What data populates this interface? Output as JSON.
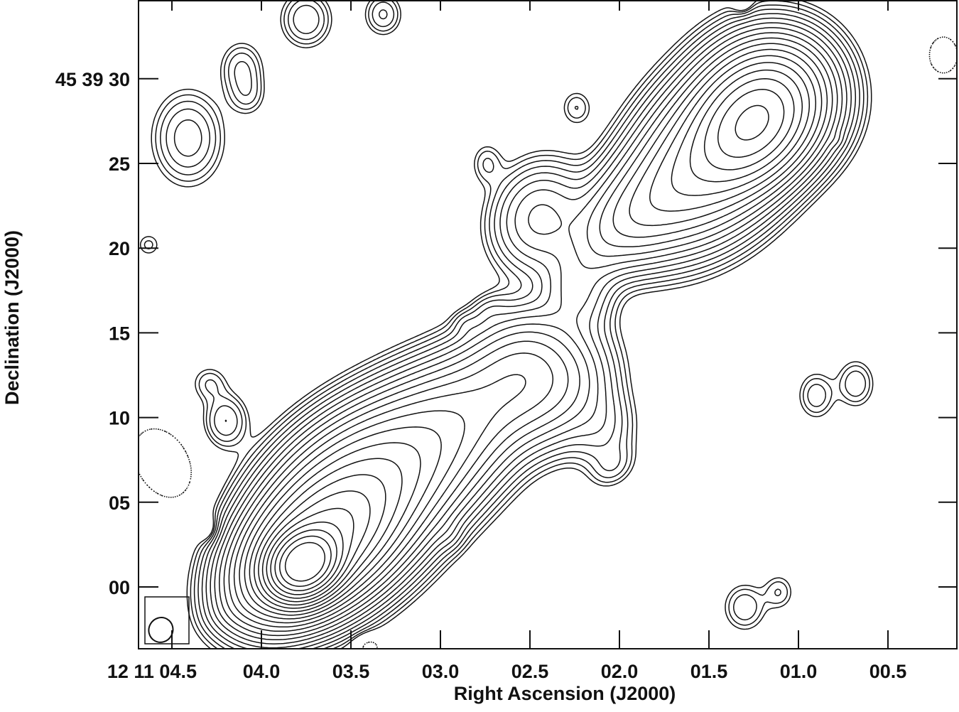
{
  "chart_data": {
    "type": "contour",
    "xlabel": "Right Ascension (J2000)",
    "ylabel": "Declination (J2000)",
    "x_ticks": [
      {
        "value": 4.5,
        "label": "12 11 04.5"
      },
      {
        "value": 4.0,
        "label": "04.0"
      },
      {
        "value": 3.5,
        "label": "03.5"
      },
      {
        "value": 3.0,
        "label": "03.0"
      },
      {
        "value": 2.5,
        "label": "02.5"
      },
      {
        "value": 2.0,
        "label": "02.0"
      },
      {
        "value": 1.5,
        "label": "01.5"
      },
      {
        "value": 1.0,
        "label": "01.0"
      },
      {
        "value": 0.5,
        "label": "00.5"
      }
    ],
    "y_ticks": [
      {
        "value": 30,
        "label": "45 39 30"
      },
      {
        "value": 25,
        "label": "25"
      },
      {
        "value": 20,
        "label": "20"
      },
      {
        "value": 15,
        "label": "15"
      },
      {
        "value": 10,
        "label": "10"
      },
      {
        "value": 5,
        "label": "05"
      },
      {
        "value": 0,
        "label": "00"
      }
    ],
    "x_range_seconds": [
      4.69,
      0.12
    ],
    "y_range_arcsec": [
      -3.7,
      34.6
    ],
    "contour_levels": {
      "base": 1,
      "factor": 1.4142,
      "count": 23,
      "negative": [
        -1
      ]
    },
    "negative_contour_style": "dotted",
    "beam": {
      "ra": 4.53,
      "dec": -2.2,
      "major_arcsec": 1.6,
      "minor_arcsec": 1.4
    },
    "components": [
      {
        "ra": 3.76,
        "dec": 1.4,
        "amp": 3000,
        "maj": 1.1,
        "min": 0.9,
        "pa": -50
      },
      {
        "ra": 3.7,
        "dec": 2.4,
        "amp": 500,
        "maj": 2.4,
        "min": 1.5,
        "pa": -50
      },
      {
        "ra": 3.55,
        "dec": 4.3,
        "amp": 220,
        "maj": 3.0,
        "min": 2.0,
        "pa": -45
      },
      {
        "ra": 3.3,
        "dec": 6.6,
        "amp": 70,
        "maj": 3.0,
        "min": 2.0,
        "pa": -55
      },
      {
        "ra": 3.05,
        "dec": 8.7,
        "amp": 35,
        "maj": 3.0,
        "min": 2.0,
        "pa": -55
      },
      {
        "ra": 2.8,
        "dec": 10.6,
        "amp": 22,
        "maj": 3.0,
        "min": 1.8,
        "pa": -60
      },
      {
        "ra": 2.53,
        "dec": 12.6,
        "amp": 28,
        "maj": 2.0,
        "min": 1.8,
        "pa": -40
      },
      {
        "ra": 2.3,
        "dec": 11.5,
        "amp": 9,
        "maj": 2.0,
        "min": 1.5,
        "pa": -30
      },
      {
        "ra": 2.1,
        "dec": 9.4,
        "amp": 4,
        "maj": 1.5,
        "min": 1.2,
        "pa": 0
      },
      {
        "ra": 1.25,
        "dec": 27.4,
        "amp": 300,
        "maj": 2.0,
        "min": 1.5,
        "pa": -40
      },
      {
        "ra": 1.15,
        "dec": 28.8,
        "amp": 60,
        "maj": 2.0,
        "min": 2.0,
        "pa": 0
      },
      {
        "ra": 1.45,
        "dec": 25.8,
        "amp": 100,
        "maj": 3.0,
        "min": 2.0,
        "pa": -40
      },
      {
        "ra": 1.75,
        "dec": 23.3,
        "amp": 35,
        "maj": 3.0,
        "min": 1.6,
        "pa": -55
      },
      {
        "ra": 1.95,
        "dec": 21.5,
        "amp": 12,
        "maj": 2.0,
        "min": 1.3,
        "pa": -60
      },
      {
        "ra": 2.45,
        "dec": 21.8,
        "amp": 12,
        "maj": 1.8,
        "min": 1.5,
        "pa": -20
      },
      {
        "ra": 2.24,
        "dec": 17.5,
        "amp": 8,
        "maj": 1.5,
        "min": 1.2,
        "pa": 0
      },
      {
        "ra": 2.1,
        "dec": 19.6,
        "amp": 2,
        "maj": 1.0,
        "min": 0.8,
        "pa": 0
      },
      {
        "ra": 4.11,
        "dec": 30.6,
        "amp": 3,
        "maj": 1.0,
        "min": 0.8,
        "pa": 0
      },
      {
        "ra": 4.08,
        "dec": 29.0,
        "amp": 2,
        "maj": 0.8,
        "min": 0.7,
        "pa": 0
      },
      {
        "ra": 4.41,
        "dec": 26.5,
        "amp": 5,
        "maj": 1.6,
        "min": 1.2,
        "pa": 0
      },
      {
        "ra": 4.2,
        "dec": 9.8,
        "amp": 4,
        "maj": 1.0,
        "min": 0.8,
        "pa": 0
      },
      {
        "ra": 4.29,
        "dec": 12.0,
        "amp": 2,
        "maj": 0.7,
        "min": 0.7,
        "pa": 0
      },
      {
        "ra": 3.75,
        "dec": 33.5,
        "amp": 4,
        "maj": 1.0,
        "min": 0.9,
        "pa": 0
      },
      {
        "ra": 3.32,
        "dec": 33.8,
        "amp": 3,
        "maj": 0.8,
        "min": 0.7,
        "pa": 0
      },
      {
        "ra": 2.24,
        "dec": 28.3,
        "amp": 2,
        "maj": 0.7,
        "min": 0.6,
        "pa": 0
      },
      {
        "ra": 2.74,
        "dec": 25.0,
        "amp": 2,
        "maj": 0.8,
        "min": 0.6,
        "pa": 0
      },
      {
        "ra": 2.73,
        "dec": 16.3,
        "amp": 2,
        "maj": 0.8,
        "min": 0.6,
        "pa": -60
      },
      {
        "ra": 2.86,
        "dec": 15.5,
        "amp": 1.6,
        "maj": 0.5,
        "min": 0.5,
        "pa": 0
      },
      {
        "ra": 2.04,
        "dec": 7.1,
        "amp": 2,
        "maj": 0.9,
        "min": 0.7,
        "pa": -50
      },
      {
        "ra": 2.95,
        "dec": 3.1,
        "amp": 1.7,
        "maj": 0.6,
        "min": 0.5,
        "pa": 0
      },
      {
        "ra": 0.9,
        "dec": 11.3,
        "amp": 2.6,
        "maj": 0.9,
        "min": 0.7,
        "pa": 0
      },
      {
        "ra": 0.68,
        "dec": 12.0,
        "amp": 2.8,
        "maj": 0.9,
        "min": 0.7,
        "pa": 0
      },
      {
        "ra": 1.3,
        "dec": -1.2,
        "amp": 2.8,
        "maj": 0.9,
        "min": 0.8,
        "pa": 0
      },
      {
        "ra": 1.11,
        "dec": -0.3,
        "amp": 2,
        "maj": 0.7,
        "min": 0.6,
        "pa": 0
      },
      {
        "ra": 4.09,
        "dec": -1.0,
        "amp": 3.5,
        "maj": 1.2,
        "min": 0.7,
        "pa": -65
      },
      {
        "ra": 0.79,
        "dec": 26.4,
        "amp": 1.4,
        "maj": 0.3,
        "min": 0.3,
        "pa": 0
      },
      {
        "ra": 4.63,
        "dec": 20.2,
        "amp": 1.6,
        "maj": 0.5,
        "min": 0.5,
        "pa": 0
      },
      {
        "ra": 0.19,
        "dec": 31.4,
        "amp": -2,
        "maj": 0.9,
        "min": 0.7,
        "pa": 0
      },
      {
        "ra": 4.55,
        "dec": 7.3,
        "amp": -1.8,
        "maj": 2.0,
        "min": 1.4,
        "pa": 30
      },
      {
        "ra": 4.28,
        "dec": 3.3,
        "amp": -1.8,
        "maj": 0.6,
        "min": 0.5,
        "pa": 0
      },
      {
        "ra": 4.02,
        "dec": 1.4,
        "amp": -2,
        "maj": 0.9,
        "min": 0.7,
        "pa": 0
      },
      {
        "ra": 3.9,
        "dec": -1.2,
        "amp": -1.7,
        "maj": 0.6,
        "min": 0.5,
        "pa": 0
      },
      {
        "ra": 1.31,
        "dec": 34.6,
        "amp": -1.8,
        "maj": 0.6,
        "min": 0.4,
        "pa": 0
      },
      {
        "ra": 3.4,
        "dec": -3.5,
        "amp": -1.7,
        "maj": 0.5,
        "min": 0.6,
        "pa": 0
      }
    ]
  }
}
